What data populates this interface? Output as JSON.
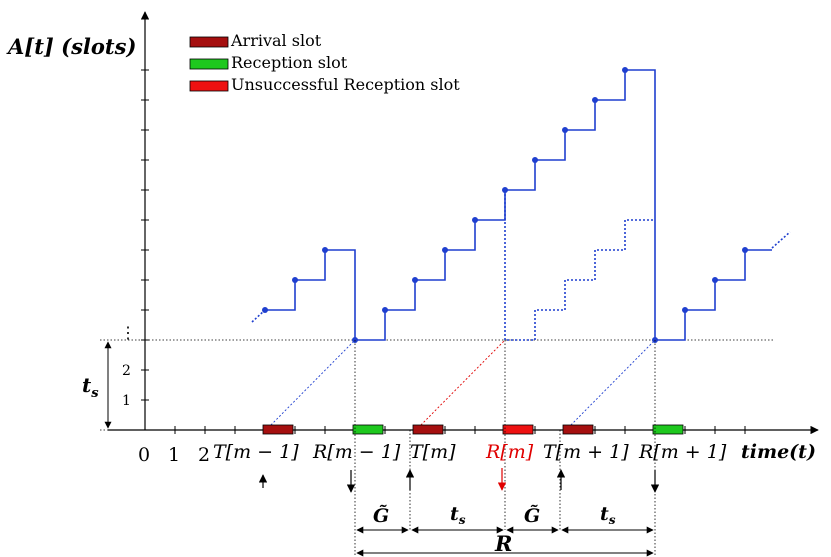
{
  "y_axis": {
    "label": "A[t] (slots)",
    "ticks": [
      "1",
      "2"
    ],
    "ellipsis": "⋮",
    "ts_label": "t",
    "ts_sub": "s"
  },
  "x_axis": {
    "label": "time(t)",
    "numbers": [
      "0",
      "1",
      "2"
    ],
    "labels": [
      {
        "text": "T[m − 1]",
        "color": "#000000"
      },
      {
        "text": "R[m − 1]",
        "color": "#000000"
      },
      {
        "text": "T[m]",
        "color": "#000000"
      },
      {
        "text": "R[m]",
        "color": "#e00000"
      },
      {
        "text": "T[m + 1]",
        "color": "#000000"
      },
      {
        "text": "R[m + 1]",
        "color": "#000000"
      }
    ]
  },
  "legend": [
    {
      "label": "Arrival slot",
      "color": "#a50f0f"
    },
    {
      "label": "Reception slot",
      "color": "#1ec81e"
    },
    {
      "label": "Unsuccessful Reception slot",
      "color": "#ee1111"
    }
  ],
  "intervals": {
    "g": "G̃",
    "ts_main": "t",
    "ts_sub": "s",
    "r": "R"
  },
  "colors": {
    "curve": "#1f3fcf",
    "red_marker": "#e00000",
    "axis": "#000000"
  }
}
